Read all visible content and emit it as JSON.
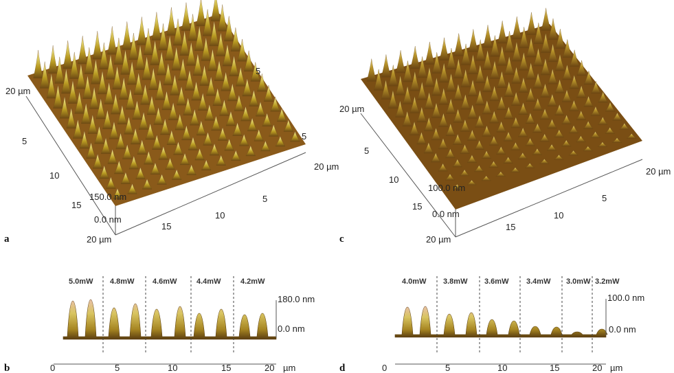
{
  "panels": {
    "a": {
      "label": "a",
      "axis_max": "20 µm",
      "z_top": "150.0 nm",
      "z_bottom": "0.0 nm",
      "left_ticks": [
        "5",
        "10",
        "15"
      ],
      "front_ticks": [
        "15",
        "10",
        "5"
      ],
      "back_ticks": [
        "5",
        "5"
      ]
    },
    "c": {
      "label": "c",
      "axis_max": "20 µm",
      "z_top": "100.0 nm",
      "z_bottom": "0.0 nm",
      "left_ticks": [
        "5",
        "10",
        "15"
      ],
      "front_ticks": [
        "15",
        "10",
        "5"
      ]
    },
    "b": {
      "label": "b",
      "powers": [
        "5.0mW",
        "4.8mW",
        "4.6mW",
        "4.4mW",
        "4.2mW"
      ],
      "z_top": "180.0 nm",
      "z_bottom": "0.0 nm",
      "x_ticks": [
        "0",
        "5",
        "10",
        "15",
        "20"
      ],
      "x_unit": "µm"
    },
    "d": {
      "label": "d",
      "powers": [
        "4.0mW",
        "3.8mW",
        "3.6mW",
        "3.4mW",
        "3.0mW",
        "3.2mW"
      ],
      "z_top": "100.0 nm",
      "z_bottom": "0.0 nm",
      "x_ticks": [
        "0",
        "5",
        "10",
        "15",
        "20"
      ],
      "x_unit": "µm"
    }
  },
  "colors": {
    "peak_light": "#f2e6a0",
    "peak_mid": "#c8a72c",
    "base_dark": "#7a4a10",
    "tip_pink": "#e8b0a8"
  }
}
